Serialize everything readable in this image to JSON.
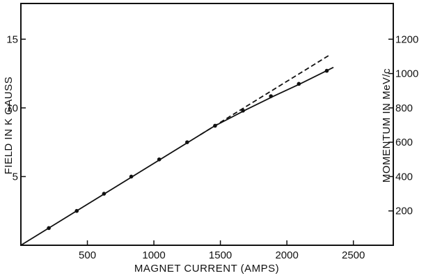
{
  "chart_data": {
    "type": "line",
    "xlabel": "MAGNET CURRENT (AMPS)",
    "ylabel_left": "FIELD IN K GAUSS",
    "ylabel_right": "MOMENTUM IN MeV/c",
    "xlim": [
      0,
      2800
    ],
    "ylim_left": [
      0,
      17.6
    ],
    "ylim_right": [
      0,
      1408
    ],
    "x_ticks": [
      500,
      1000,
      1500,
      2000,
      2500
    ],
    "x_tick_labels": [
      "500",
      "1000",
      "1500",
      "2000",
      "2500"
    ],
    "y_left_ticks": [
      5,
      10,
      15
    ],
    "y_left_tick_labels": [
      "5",
      "10",
      "15"
    ],
    "y_right_ticks": [
      200,
      400,
      600,
      800,
      1000,
      1200
    ],
    "y_right_tick_labels": [
      "200",
      "400",
      "600",
      "800",
      "1000",
      "1200"
    ],
    "grid": false,
    "series": [
      {
        "style": "solid-with-markers",
        "x": [
          210,
          420,
          625,
          830,
          1040,
          1250,
          1460,
          1670,
          1880,
          2090,
          2300
        ],
        "y": [
          1.25,
          2.5,
          3.75,
          5.0,
          6.25,
          7.5,
          8.7,
          9.8,
          10.85,
          11.75,
          12.7
        ]
      },
      {
        "style": "solid-no-markers",
        "x": [
          0,
          1450,
          1700,
          1900,
          2100,
          2350
        ],
        "y": [
          0,
          8.65,
          9.9,
          10.85,
          11.75,
          12.95
        ]
      },
      {
        "style": "dashed",
        "x": [
          1350,
          2330
        ],
        "y": [
          8.05,
          13.9
        ]
      }
    ]
  }
}
